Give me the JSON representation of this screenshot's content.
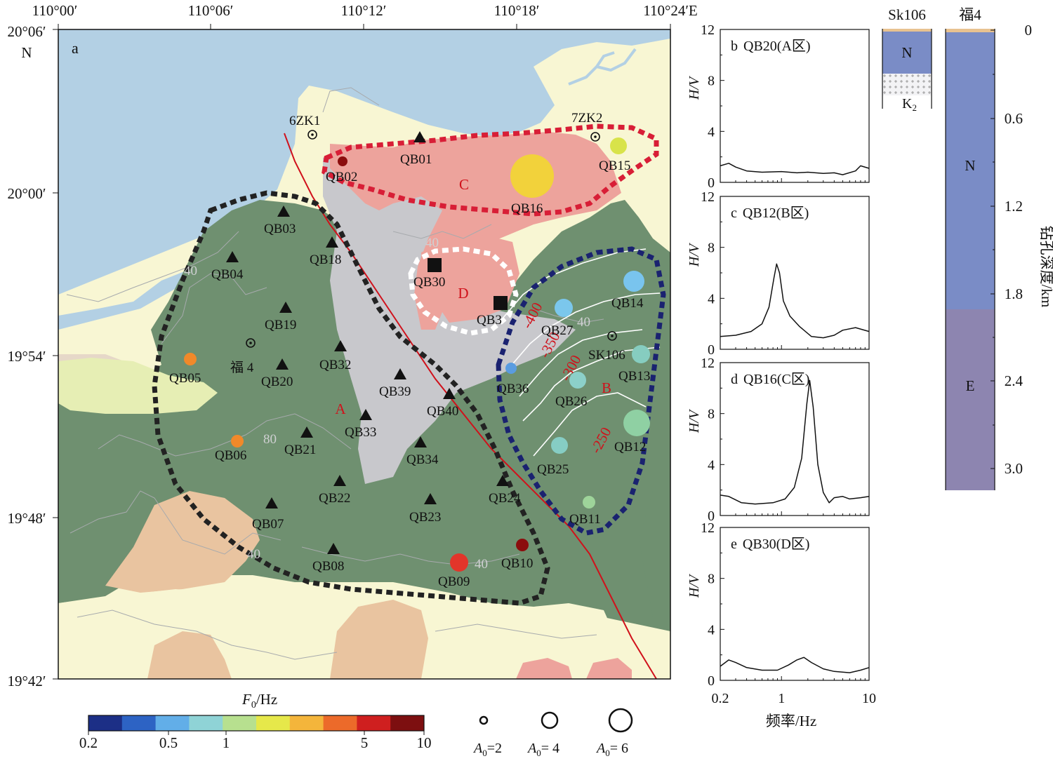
{
  "map": {
    "panel_letter": "a",
    "lon_labels": [
      "110°00′",
      "110°06′",
      "110°12′",
      "110°18′",
      "110°24′E"
    ],
    "lat_labels": [
      "20°06′",
      "20°00′",
      "19°54′",
      "19°48′",
      "19°42′"
    ],
    "north_letter": "N",
    "zone_labels": {
      "A": "A",
      "B": "B",
      "C": "C",
      "D": "D"
    },
    "contour_labels_grey": [
      "40",
      "40",
      "40",
      "80",
      "40",
      "40"
    ],
    "contour_labels_red": [
      "-400",
      "-350",
      "-300",
      "-250"
    ],
    "wells": [
      {
        "id": "6zk1",
        "label": "6ZK1"
      },
      {
        "id": "7zk2",
        "label": "7ZK2"
      },
      {
        "id": "fu4",
        "label": "福 4"
      },
      {
        "id": "sk106",
        "label": "SK106"
      }
    ],
    "stations": [
      {
        "label": "QB01",
        "kind": "triangle"
      },
      {
        "label": "QB02",
        "kind": "circle",
        "color": "#8b0d0d"
      },
      {
        "label": "QB03",
        "kind": "triangle"
      },
      {
        "label": "QB04",
        "kind": "triangle"
      },
      {
        "label": "QB05",
        "kind": "circle",
        "color": "#f0892a"
      },
      {
        "label": "QB06",
        "kind": "circle",
        "color": "#f0892a"
      },
      {
        "label": "QB07",
        "kind": "triangle"
      },
      {
        "label": "QB08",
        "kind": "triangle"
      },
      {
        "label": "QB09",
        "kind": "circle",
        "color": "#e2352a"
      },
      {
        "label": "QB10",
        "kind": "circle",
        "color": "#8b0d0d"
      },
      {
        "label": "QB11",
        "kind": "circle",
        "color": "#9ed49a"
      },
      {
        "label": "QB12",
        "kind": "circle",
        "color": "#8fd0a3"
      },
      {
        "label": "QB13",
        "kind": "circle",
        "color": "#86cdc0"
      },
      {
        "label": "QB14",
        "kind": "circle",
        "color": "#79c4ee"
      },
      {
        "label": "QB15",
        "kind": "circle",
        "color": "#d8e34a"
      },
      {
        "label": "QB16",
        "kind": "circle",
        "color": "#f2d23b"
      },
      {
        "label": "QB18",
        "kind": "triangle"
      },
      {
        "label": "QB19",
        "kind": "triangle"
      },
      {
        "label": "QB20",
        "kind": "triangle"
      },
      {
        "label": "QB21",
        "kind": "triangle"
      },
      {
        "label": "QB22",
        "kind": "triangle"
      },
      {
        "label": "QB23",
        "kind": "triangle"
      },
      {
        "label": "QB24",
        "kind": "triangle"
      },
      {
        "label": "QB25",
        "kind": "circle",
        "color": "#86cdc4"
      },
      {
        "label": "QB26",
        "kind": "circle",
        "color": "#8cd0c9"
      },
      {
        "label": "QB27",
        "kind": "circle",
        "color": "#7bc7ec"
      },
      {
        "label": "QB30",
        "kind": "square"
      },
      {
        "label": "QB3",
        "kind": "square"
      },
      {
        "label": "QB32",
        "kind": "triangle"
      },
      {
        "label": "QB33",
        "kind": "triangle"
      },
      {
        "label": "QB34",
        "kind": "triangle"
      },
      {
        "label": "QB36",
        "kind": "circle",
        "color": "#5a9ce0"
      },
      {
        "label": "QB39",
        "kind": "triangle"
      },
      {
        "label": "QB40",
        "kind": "triangle"
      }
    ],
    "colors": {
      "sea": "#b3d0e4",
      "land": "#f8f6d3",
      "green": "#6f9070",
      "grey": "#c8c8cc",
      "salmon": "#eda39c",
      "tan": "#e9c4a0",
      "lightgreen": "#e6eeb4",
      "beige": "#e6d8c8",
      "fault": "#d0111b",
      "zoneA": "#222222",
      "zoneB": "#1a2270",
      "zoneC": "#d81e36",
      "zoneD": "#ffffff"
    }
  },
  "colorbar": {
    "label_var": "F",
    "label_sub": "0",
    "label_unit": "/Hz",
    "ticks": [
      "0.2",
      "0.5",
      "1",
      "5",
      "10"
    ],
    "colors": [
      "#1c2f86",
      "#2d63c4",
      "#62aee8",
      "#8fd3d6",
      "#b7e08f",
      "#e6e84a",
      "#f4b53b",
      "#ec6a2a",
      "#cf1f1f",
      "#7d0f10"
    ]
  },
  "amplitude_legend": [
    {
      "var": "A",
      "sub": "0",
      "text": "=2"
    },
    {
      "var": "A",
      "sub": "0",
      "text": "= 4"
    },
    {
      "var": "A",
      "sub": "0",
      "text": "= 6"
    }
  ],
  "hv_panels": {
    "ylabel": "H/V",
    "yticks": [
      "0",
      "4",
      "8",
      "12"
    ],
    "xticks": [
      "0.2",
      "1",
      "10"
    ],
    "xlabel": "频率/Hz",
    "panels": [
      {
        "letter": "b",
        "title": "QB20(A区)",
        "curve": [
          [
            0.2,
            1.3
          ],
          [
            0.25,
            1.5
          ],
          [
            0.3,
            1.2
          ],
          [
            0.4,
            0.9
          ],
          [
            0.6,
            0.8
          ],
          [
            1.0,
            0.85
          ],
          [
            1.5,
            0.75
          ],
          [
            2,
            0.8
          ],
          [
            3,
            0.7
          ],
          [
            4,
            0.75
          ],
          [
            5,
            0.6
          ],
          [
            7,
            0.9
          ],
          [
            8,
            1.3
          ],
          [
            10,
            1.1
          ]
        ]
      },
      {
        "letter": "c",
        "title": "QB12(B区)",
        "curve": [
          [
            0.2,
            1.0
          ],
          [
            0.3,
            1.1
          ],
          [
            0.45,
            1.4
          ],
          [
            0.6,
            2.0
          ],
          [
            0.72,
            3.3
          ],
          [
            0.82,
            5.6
          ],
          [
            0.88,
            6.7
          ],
          [
            0.95,
            6.0
          ],
          [
            1.05,
            3.8
          ],
          [
            1.25,
            2.6
          ],
          [
            1.6,
            1.8
          ],
          [
            2.2,
            1.0
          ],
          [
            3,
            0.9
          ],
          [
            4,
            1.1
          ],
          [
            5,
            1.5
          ],
          [
            7,
            1.7
          ],
          [
            10,
            1.4
          ]
        ]
      },
      {
        "letter": "d",
        "title": "QB16(C区)",
        "curve": [
          [
            0.2,
            1.6
          ],
          [
            0.25,
            1.5
          ],
          [
            0.35,
            1.0
          ],
          [
            0.5,
            0.9
          ],
          [
            0.8,
            1.0
          ],
          [
            1.1,
            1.3
          ],
          [
            1.4,
            2.2
          ],
          [
            1.7,
            4.5
          ],
          [
            1.95,
            8.8
          ],
          [
            2.1,
            10.6
          ],
          [
            2.3,
            8.5
          ],
          [
            2.6,
            4.0
          ],
          [
            3,
            1.8
          ],
          [
            3.5,
            1.0
          ],
          [
            4,
            1.4
          ],
          [
            5,
            1.5
          ],
          [
            6,
            1.3
          ],
          [
            8,
            1.4
          ],
          [
            10,
            1.5
          ]
        ]
      },
      {
        "letter": "e",
        "title": "QB30(D区)",
        "curve": [
          [
            0.2,
            1.1
          ],
          [
            0.25,
            1.6
          ],
          [
            0.3,
            1.4
          ],
          [
            0.4,
            1.0
          ],
          [
            0.6,
            0.8
          ],
          [
            0.9,
            0.8
          ],
          [
            1.2,
            1.2
          ],
          [
            1.5,
            1.6
          ],
          [
            1.8,
            1.8
          ],
          [
            2.2,
            1.4
          ],
          [
            3,
            0.9
          ],
          [
            4,
            0.7
          ],
          [
            6,
            0.6
          ],
          [
            8,
            0.8
          ],
          [
            10,
            1.0
          ]
        ]
      }
    ]
  },
  "boreholes": {
    "sk106": {
      "name": "Sk106",
      "unit_n": "N",
      "unit_k": "K",
      "unit_k_sub": "2"
    },
    "fu4": {
      "name": "福4",
      "unit_n": "N",
      "unit_e": "E"
    },
    "depth_ticks": [
      "0",
      "0.6",
      "1.2",
      "1.8",
      "2.4",
      "3.0"
    ],
    "axis_label": "钻孔深度/km",
    "colors": {
      "n": "#7a8cc6",
      "e": "#8d85b0",
      "top": "#e8c290",
      "k": "#f2f2f4"
    }
  }
}
